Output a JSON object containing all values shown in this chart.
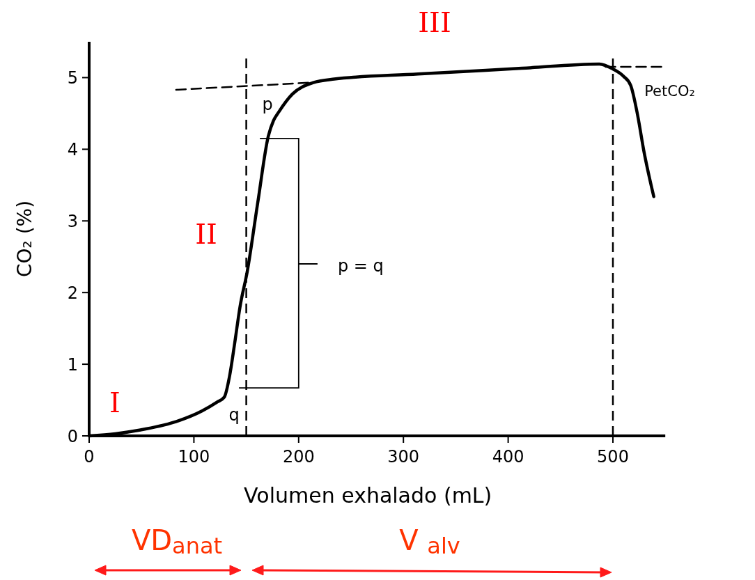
{
  "chart_data": {
    "type": "line",
    "xlabel": "Volumen exhalado (mL)",
    "ylabel": "CO₂  (%)",
    "xlim": [
      0,
      550
    ],
    "ylim": [
      0,
      5.5
    ],
    "xticks": [
      0,
      100,
      200,
      300,
      400,
      500
    ],
    "yticks": [
      0,
      1,
      2,
      3,
      4,
      5
    ],
    "grid": false,
    "legend": false,
    "marker": "none",
    "series": [
      {
        "color": "#000000",
        "line_style": "solid",
        "x": [
          0,
          25,
          48,
          81,
          108,
          122,
          129,
          134,
          139,
          144,
          151,
          161,
          171,
          176,
          181,
          194,
          214,
          234,
          314,
          413,
          487,
          500,
          510,
          517,
          523,
          530,
          539
        ],
        "values": [
          0,
          0.03,
          0.08,
          0.19,
          0.35,
          0.47,
          0.54,
          0.83,
          1.3,
          1.8,
          2.3,
          3.26,
          4.18,
          4.4,
          4.52,
          4.77,
          4.93,
          4.98,
          5.05,
          5.13,
          5.19,
          5.12,
          5.02,
          4.89,
          4.52,
          3.94,
          3.34
        ]
      },
      {
        "color": "#000000",
        "line_style": "dashed",
        "x": [
          83,
          211
        ],
        "values": [
          4.83,
          4.93
        ]
      },
      {
        "name": "PetCO₂",
        "color": "#000000",
        "line_style": "dashed",
        "x": [
          493,
          550
        ],
        "values": [
          5.15,
          5.15
        ]
      }
    ],
    "ref_lines": [
      {
        "axis": "x",
        "value": 150,
        "color": "#000000",
        "line_style": "dashed"
      },
      {
        "axis": "x",
        "value": 500,
        "color": "#000000",
        "line_style": "dashed"
      }
    ],
    "annotations": [
      "I",
      "II",
      "III",
      "p",
      "q",
      "p = q",
      "VD$_{anat}$",
      "V $_{alv}$"
    ]
  }
}
